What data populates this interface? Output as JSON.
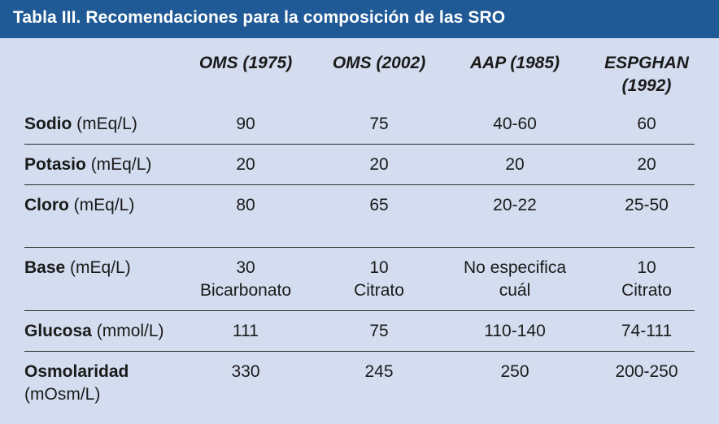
{
  "title": "Tabla III.  Recomendaciones para la composición de las SRO",
  "columns": [
    {
      "line1": "OMS (1975)",
      "line2": ""
    },
    {
      "line1": "OMS (2002)",
      "line2": ""
    },
    {
      "line1": "AAP (1985)",
      "line2": ""
    },
    {
      "line1": "ESPGHAN",
      "line2": "(1992)"
    }
  ],
  "rows": [
    {
      "name": "Sodio",
      "unit": " (mEq/L)",
      "values": [
        [
          "90"
        ],
        [
          "75"
        ],
        [
          "40-60"
        ],
        [
          "60"
        ]
      ]
    },
    {
      "name": "Potasio",
      "unit": " (mEq/L)",
      "values": [
        [
          "20"
        ],
        [
          "20"
        ],
        [
          "20"
        ],
        [
          "20"
        ]
      ]
    },
    {
      "name": "Cloro",
      "unit": " (mEq/L)",
      "values": [
        [
          "80"
        ],
        [
          "65"
        ],
        [
          "20-22"
        ],
        [
          "25-50"
        ]
      ]
    },
    {
      "name": "Base",
      "unit": " (mEq/L)",
      "values": [
        [
          "30",
          "Bicarbonato"
        ],
        [
          "10",
          "Citrato"
        ],
        [
          "No especifica",
          "cuál"
        ],
        [
          "10",
          "Citrato"
        ]
      ]
    },
    {
      "name": "Glucosa",
      "unit": " (mmol/L)",
      "values": [
        [
          "111"
        ],
        [
          "75"
        ],
        [
          "110-140"
        ],
        [
          "74-111"
        ]
      ]
    },
    {
      "name": "Osmolaridad",
      "unit": "(mOsm/L)",
      "values": [
        [
          "330"
        ],
        [
          "245"
        ],
        [
          "250"
        ],
        [
          "200-250"
        ]
      ]
    }
  ]
}
